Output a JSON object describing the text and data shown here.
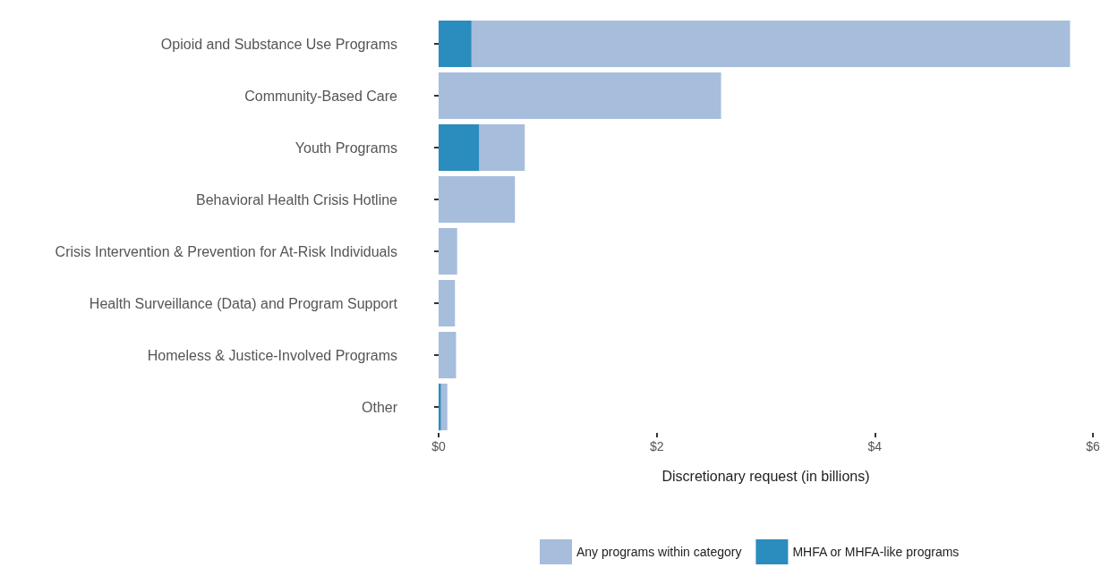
{
  "chart_data": {
    "type": "bar",
    "orientation": "horizontal",
    "xlabel": "Discretionary request (in billions)",
    "categories": [
      "Opioid and Substance Use Programs",
      "Community-Based Care",
      "Youth Programs",
      "Behavioral Health Crisis Hotline",
      "Crisis Intervention & Prevention for At-Risk Individuals",
      "Health Surveillance (Data) and Program Support",
      "Homeless & Justice-Involved Programs",
      "Other"
    ],
    "series": [
      {
        "name": "Any programs within category",
        "color": "#a7bddc",
        "values": [
          5.79,
          2.59,
          0.79,
          0.7,
          0.17,
          0.15,
          0.16,
          0.08
        ]
      },
      {
        "name": "MHFA or MHFA-like programs",
        "color": "#2b8cbe",
        "values": [
          0.3,
          null,
          0.37,
          null,
          null,
          null,
          null,
          0.02
        ]
      }
    ],
    "xlim": [
      0,
      6
    ],
    "xticks": [
      {
        "value": 0,
        "label": "$0"
      },
      {
        "value": 2,
        "label": "$2"
      },
      {
        "value": 4,
        "label": "$4"
      },
      {
        "value": 6,
        "label": "$6"
      }
    ],
    "grid": false,
    "legend": "bottom"
  }
}
